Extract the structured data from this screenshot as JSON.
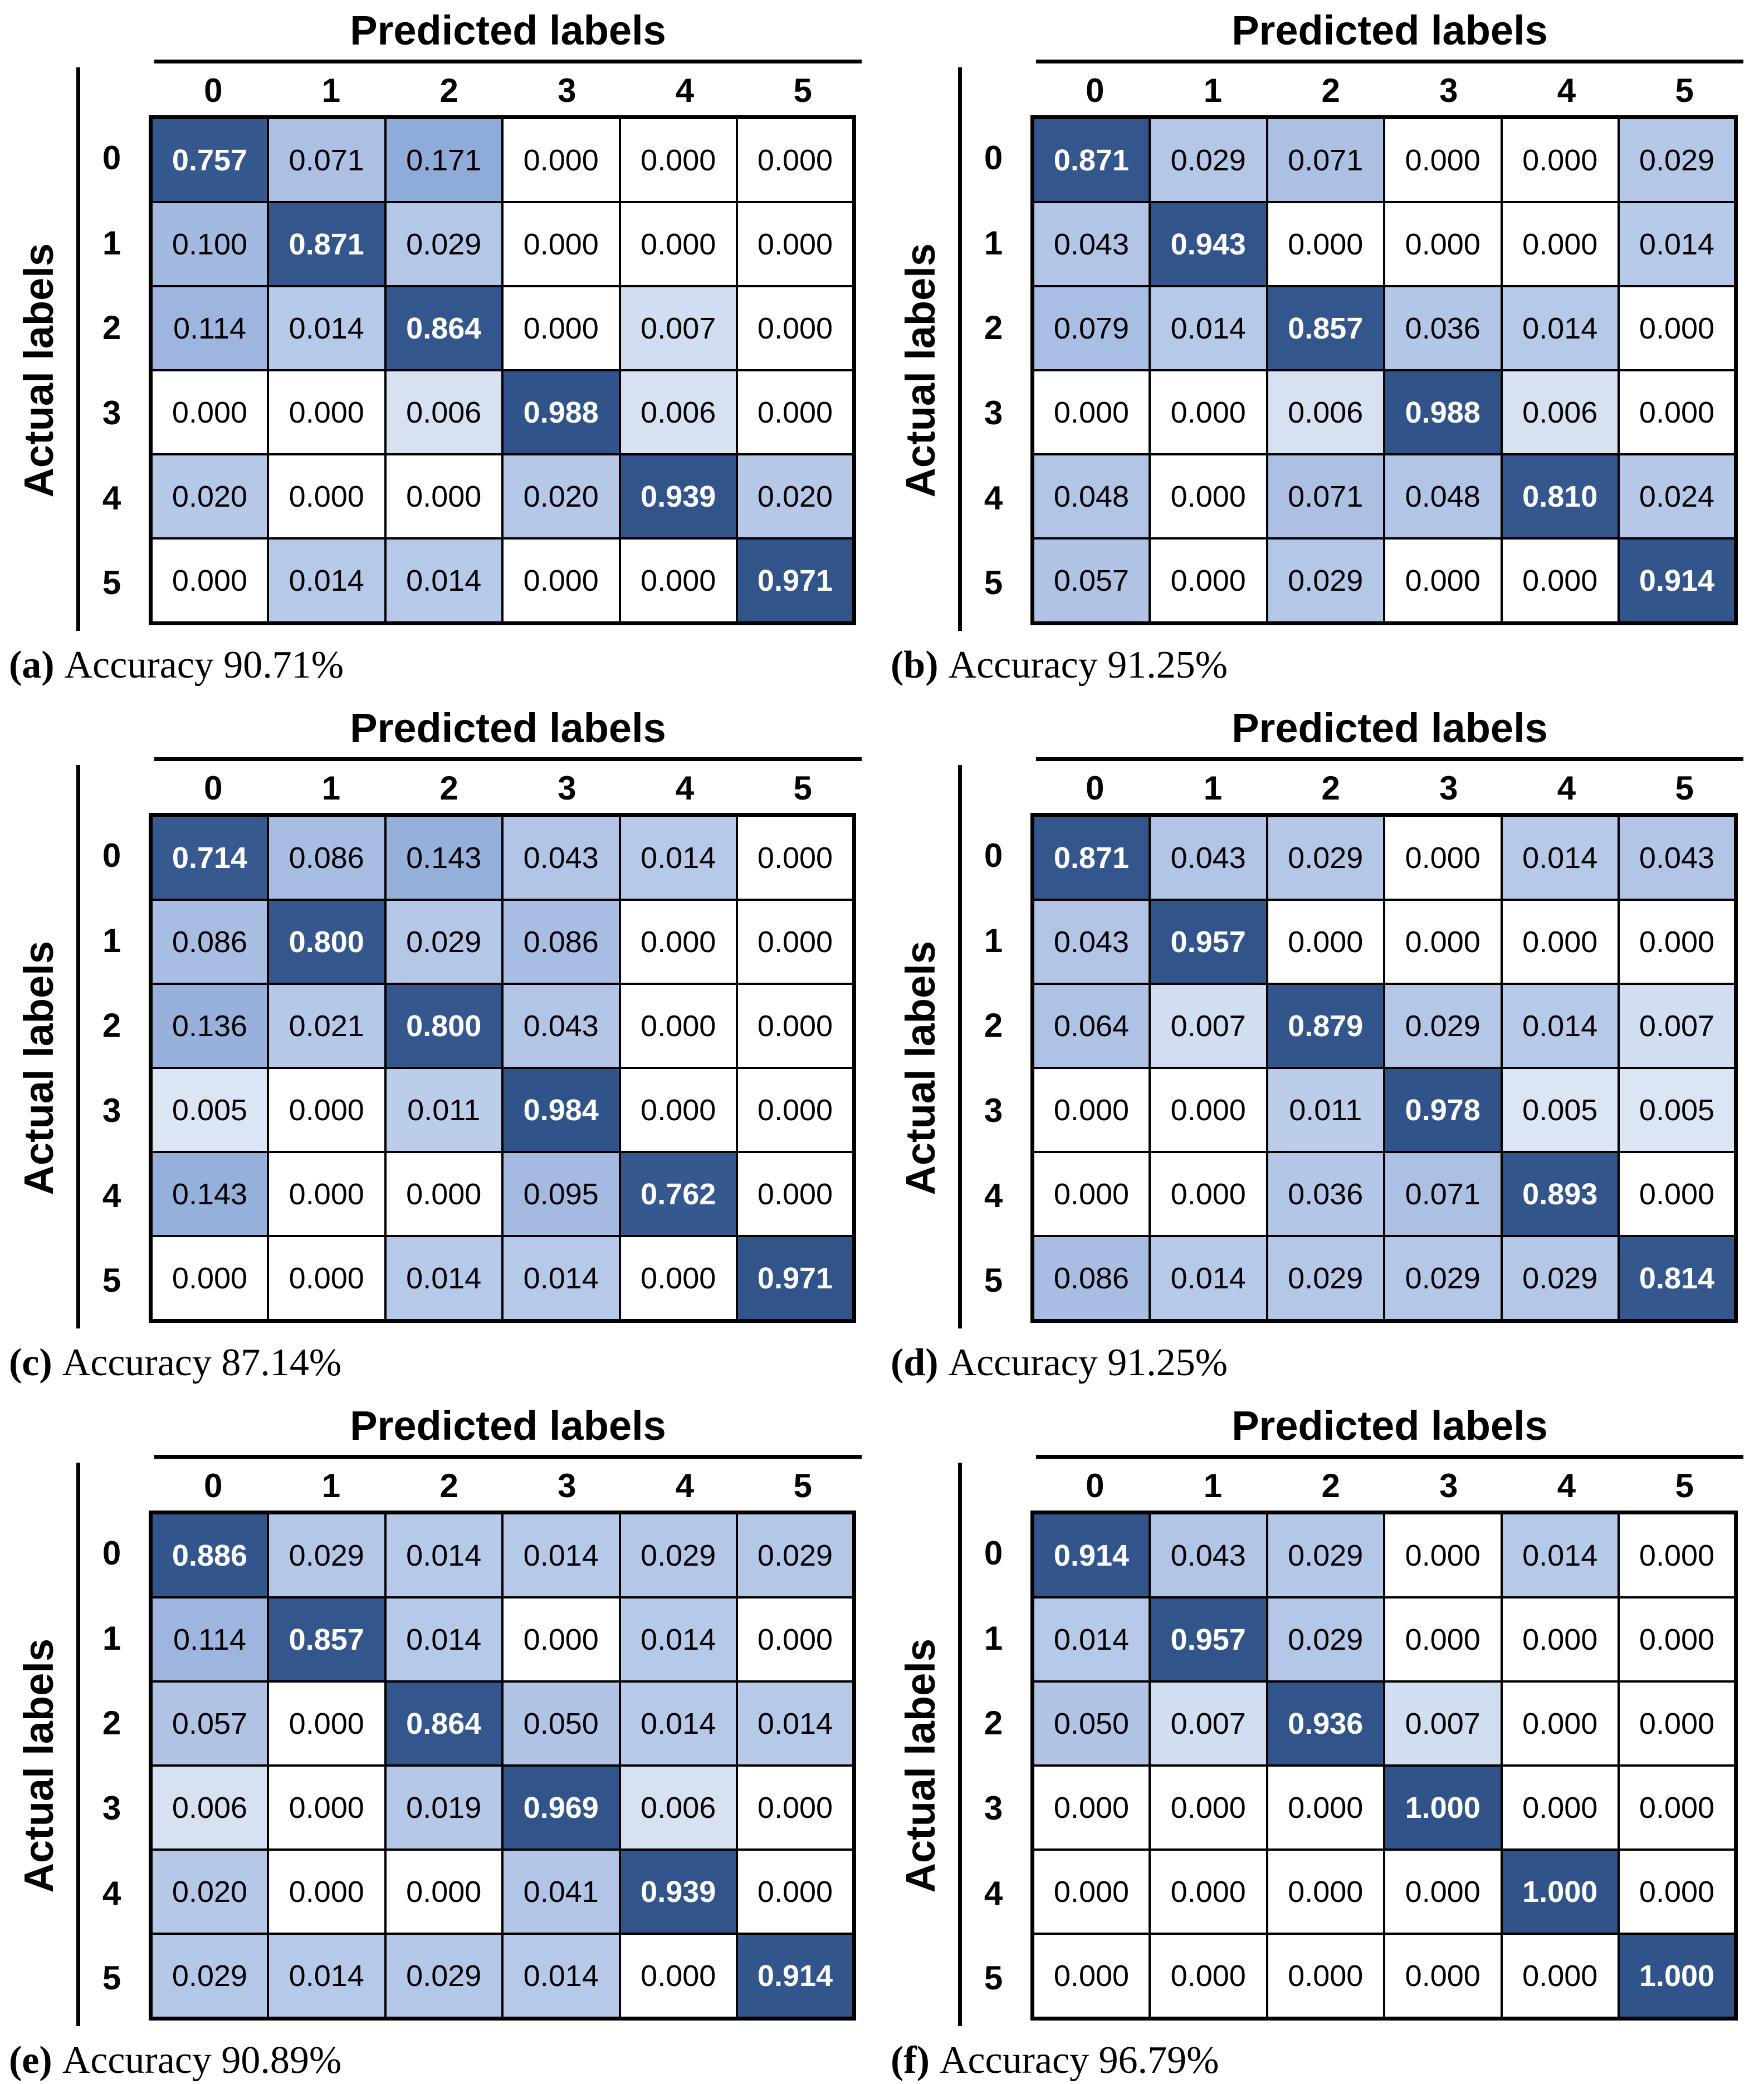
{
  "figure": {
    "x_axis_title": "Predicted labels",
    "y_axis_title": "Actual labels"
  },
  "colors": {
    "cell_border": "#000000",
    "diagonal_text": "#FFFFFF",
    "offdiagonal_text": "#000000",
    "zero_cell": "#FFFFFF",
    "low_value_cell": "#B4C7E7",
    "very_low_value_cell": "#DCE5F3",
    "medium_value_cell": "#8FACDC",
    "diagonal_cell": "#35598F",
    "colormap_stops": [
      {
        "value": 0.0,
        "rgb": [
          255,
          255,
          255
        ]
      },
      {
        "value": 0.004,
        "rgb": [
          225,
          233,
          245
        ]
      },
      {
        "value": 0.012,
        "rgb": [
          183,
          201,
          232
        ]
      },
      {
        "value": 0.06,
        "rgb": [
          175,
          195,
          229
        ]
      },
      {
        "value": 0.12,
        "rgb": [
          156,
          180,
          222
        ]
      },
      {
        "value": 0.18,
        "rgb": [
          140,
          169,
          216
        ]
      },
      {
        "value": 0.7,
        "rgb": [
          54,
          90,
          144
        ]
      },
      {
        "value": 1.0,
        "rgb": [
          48,
          84,
          138
        ]
      }
    ]
  },
  "chart_data": [
    {
      "type": "heatmap",
      "panel": "a",
      "xlabel": "Predicted labels",
      "ylabel": "Actual labels",
      "x_tick_labels": [
        "0",
        "1",
        "2",
        "3",
        "4",
        "5"
      ],
      "y_tick_labels": [
        "0",
        "1",
        "2",
        "3",
        "4",
        "5"
      ],
      "values": [
        [
          "0.757",
          "0.071",
          "0.171",
          "0.000",
          "0.000",
          "0.000"
        ],
        [
          "0.100",
          "0.871",
          "0.029",
          "0.000",
          "0.000",
          "0.000"
        ],
        [
          "0.114",
          "0.014",
          "0.864",
          "0.000",
          "0.007",
          "0.000"
        ],
        [
          "0.000",
          "0.000",
          "0.006",
          "0.988",
          "0.006",
          "0.000"
        ],
        [
          "0.020",
          "0.000",
          "0.000",
          "0.020",
          "0.939",
          "0.020"
        ],
        [
          "0.000",
          "0.014",
          "0.014",
          "0.000",
          "0.000",
          "0.971"
        ]
      ],
      "caption_label": "(a)",
      "caption_text": "Accuracy 90.71%"
    },
    {
      "type": "heatmap",
      "panel": "b",
      "xlabel": "Predicted labels",
      "ylabel": "Actual labels",
      "x_tick_labels": [
        "0",
        "1",
        "2",
        "3",
        "4",
        "5"
      ],
      "y_tick_labels": [
        "0",
        "1",
        "2",
        "3",
        "4",
        "5"
      ],
      "values": [
        [
          "0.871",
          "0.029",
          "0.071",
          "0.000",
          "0.000",
          "0.029"
        ],
        [
          "0.043",
          "0.943",
          "0.000",
          "0.000",
          "0.000",
          "0.014"
        ],
        [
          "0.079",
          "0.014",
          "0.857",
          "0.036",
          "0.014",
          "0.000"
        ],
        [
          "0.000",
          "0.000",
          "0.006",
          "0.988",
          "0.006",
          "0.000"
        ],
        [
          "0.048",
          "0.000",
          "0.071",
          "0.048",
          "0.810",
          "0.024"
        ],
        [
          "0.057",
          "0.000",
          "0.029",
          "0.000",
          "0.000",
          "0.914"
        ]
      ],
      "caption_label": "(b)",
      "caption_text": "Accuracy 91.25%"
    },
    {
      "type": "heatmap",
      "panel": "c",
      "xlabel": "Predicted labels",
      "ylabel": "Actual labels",
      "x_tick_labels": [
        "0",
        "1",
        "2",
        "3",
        "4",
        "5"
      ],
      "y_tick_labels": [
        "0",
        "1",
        "2",
        "3",
        "4",
        "5"
      ],
      "values": [
        [
          "0.714",
          "0.086",
          "0.143",
          "0.043",
          "0.014",
          "0.000"
        ],
        [
          "0.086",
          "0.800",
          "0.029",
          "0.086",
          "0.000",
          "0.000"
        ],
        [
          "0.136",
          "0.021",
          "0.800",
          "0.043",
          "0.000",
          "0.000"
        ],
        [
          "0.005",
          "0.000",
          "0.011",
          "0.984",
          "0.000",
          "0.000"
        ],
        [
          "0.143",
          "0.000",
          "0.000",
          "0.095",
          "0.762",
          "0.000"
        ],
        [
          "0.000",
          "0.000",
          "0.014",
          "0.014",
          "0.000",
          "0.971"
        ]
      ],
      "caption_label": "(c)",
      "caption_text": "Accuracy 87.14%"
    },
    {
      "type": "heatmap",
      "panel": "d",
      "xlabel": "Predicted labels",
      "ylabel": "Actual labels",
      "x_tick_labels": [
        "0",
        "1",
        "2",
        "3",
        "4",
        "5"
      ],
      "y_tick_labels": [
        "0",
        "1",
        "2",
        "3",
        "4",
        "5"
      ],
      "values": [
        [
          "0.871",
          "0.043",
          "0.029",
          "0.000",
          "0.014",
          "0.043"
        ],
        [
          "0.043",
          "0.957",
          "0.000",
          "0.000",
          "0.000",
          "0.000"
        ],
        [
          "0.064",
          "0.007",
          "0.879",
          "0.029",
          "0.014",
          "0.007"
        ],
        [
          "0.000",
          "0.000",
          "0.011",
          "0.978",
          "0.005",
          "0.005"
        ],
        [
          "0.000",
          "0.000",
          "0.036",
          "0.071",
          "0.893",
          "0.000"
        ],
        [
          "0.086",
          "0.014",
          "0.029",
          "0.029",
          "0.029",
          "0.814"
        ]
      ],
      "caption_label": "(d)",
      "caption_text": "Accuracy 91.25%"
    },
    {
      "type": "heatmap",
      "panel": "e",
      "xlabel": "Predicted labels",
      "ylabel": "Actual labels",
      "x_tick_labels": [
        "0",
        "1",
        "2",
        "3",
        "4",
        "5"
      ],
      "y_tick_labels": [
        "0",
        "1",
        "2",
        "3",
        "4",
        "5"
      ],
      "values": [
        [
          "0.886",
          "0.029",
          "0.014",
          "0.014",
          "0.029",
          "0.029"
        ],
        [
          "0.114",
          "0.857",
          "0.014",
          "0.000",
          "0.014",
          "0.000"
        ],
        [
          "0.057",
          "0.000",
          "0.864",
          "0.050",
          "0.014",
          "0.014"
        ],
        [
          "0.006",
          "0.000",
          "0.019",
          "0.969",
          "0.006",
          "0.000"
        ],
        [
          "0.020",
          "0.000",
          "0.000",
          "0.041",
          "0.939",
          "0.000"
        ],
        [
          "0.029",
          "0.014",
          "0.029",
          "0.014",
          "0.000",
          "0.914"
        ]
      ],
      "caption_label": "(e)",
      "caption_text": "Accuracy 90.89%"
    },
    {
      "type": "heatmap",
      "panel": "f",
      "xlabel": "Predicted labels",
      "ylabel": "Actual labels",
      "x_tick_labels": [
        "0",
        "1",
        "2",
        "3",
        "4",
        "5"
      ],
      "y_tick_labels": [
        "0",
        "1",
        "2",
        "3",
        "4",
        "5"
      ],
      "values": [
        [
          "0.914",
          "0.043",
          "0.029",
          "0.000",
          "0.014",
          "0.000"
        ],
        [
          "0.014",
          "0.957",
          "0.029",
          "0.000",
          "0.000",
          "0.000"
        ],
        [
          "0.050",
          "0.007",
          "0.936",
          "0.007",
          "0.000",
          "0.000"
        ],
        [
          "0.000",
          "0.000",
          "0.000",
          "1.000",
          "0.000",
          "0.000"
        ],
        [
          "0.000",
          "0.000",
          "0.000",
          "0.000",
          "1.000",
          "0.000"
        ],
        [
          "0.000",
          "0.000",
          "0.000",
          "0.000",
          "0.000",
          "1.000"
        ]
      ],
      "caption_label": "(f)",
      "caption_text": "Accuracy 96.79%"
    }
  ]
}
